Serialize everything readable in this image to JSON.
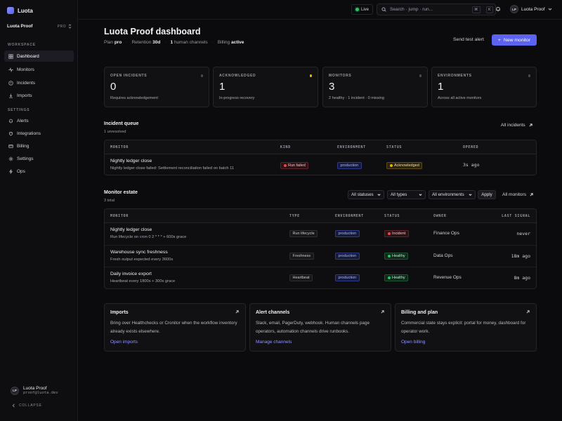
{
  "app": {
    "name": "Luota"
  },
  "workspace": {
    "name": "Luota Proof",
    "plan_badge": "PRO"
  },
  "sidebar": {
    "section_workspace": "WORKSPACE",
    "section_settings": "SETTINGS",
    "workspace_items": [
      {
        "label": "Dashboard",
        "icon": "dashboard-icon",
        "active": true
      },
      {
        "label": "Monitors",
        "icon": "pulse-icon"
      },
      {
        "label": "Incidents",
        "icon": "alert-circle-icon"
      },
      {
        "label": "Imports",
        "icon": "import-icon"
      }
    ],
    "settings_items": [
      {
        "label": "Alerts",
        "icon": "bell-icon"
      },
      {
        "label": "Integrations",
        "icon": "plug-icon"
      },
      {
        "label": "Billing",
        "icon": "card-icon"
      },
      {
        "label": "Settings",
        "icon": "gear-icon"
      },
      {
        "label": "Ops",
        "icon": "ops-icon"
      }
    ],
    "user": {
      "initials": "LP",
      "name": "Luota Proof",
      "email": "proof@luota.dev"
    },
    "collapse_label": "COLLAPSE"
  },
  "topbar": {
    "live_label": "Live",
    "search_placeholder": "Search · jump · run...",
    "kbd_cmd": "⌘",
    "kbd_k": "K",
    "user_initials": "LP",
    "user_name": "Luota Proof"
  },
  "header": {
    "title": "Luota Proof dashboard",
    "plan_label": "Plan",
    "plan_value": "pro",
    "retention_label": "Retention",
    "retention_value": "30d",
    "human_channels_count": "1",
    "human_channels_label": "human channels",
    "billing_label": "Billing",
    "billing_value": "active",
    "send_test_label": "Send test alert",
    "new_monitor_label": "New monitor"
  },
  "stats": [
    {
      "label": "OPEN INCIDENTS",
      "value": "0",
      "sub": "Requires acknowledgement",
      "dot_color": "#4a4a54"
    },
    {
      "label": "ACKNOWLEDGED",
      "value": "1",
      "sub": "In-progress recovery",
      "dot_color": "#eab308"
    },
    {
      "label": "MONITORS",
      "value": "3",
      "sub": "2 healthy · 1 incident · 0 missing",
      "dot_color": "#4a4a54"
    },
    {
      "label": "ENVIRONMENTS",
      "value": "1",
      "sub": "Across all active monitors",
      "dot_color": "#4a4a54"
    }
  ],
  "incident_queue": {
    "title": "Incident queue",
    "subtitle": "1 unresolved",
    "link_label": "All incidents",
    "columns": [
      "MONITOR",
      "KIND",
      "ENVIRONMENT",
      "STATUS",
      "OPENED"
    ],
    "rows": [
      {
        "monitor": "Nightly ledger close",
        "detail": "Nightly ledger close failed: Settlement reconciliation failed on batch 11",
        "kind": "Run failed",
        "environment": "production",
        "status": "Acknowledged",
        "opened": "3s ago"
      }
    ]
  },
  "monitor_estate": {
    "title": "Monitor estate",
    "subtitle": "3 total",
    "filters": {
      "status": "All statuses",
      "type": "All types",
      "environment": "All environments"
    },
    "apply_label": "Apply",
    "link_label": "All monitors",
    "columns": [
      "MONITOR",
      "TYPE",
      "ENVIRONMENT",
      "STATUS",
      "OWNER",
      "LAST SIGNAL"
    ],
    "rows": [
      {
        "monitor": "Nightly ledger close",
        "detail": "Run lifecycle on cron 0 2 * * * + 600s grace",
        "type": "Run lifecycle",
        "environment": "production",
        "status": "Incident",
        "owner": "Finance Ops",
        "last_signal": "never"
      },
      {
        "monitor": "Warehouse sync freshness",
        "detail": "Fresh output expected every 3600s",
        "type": "Freshness",
        "environment": "production",
        "status": "Healthy",
        "owner": "Data Ops",
        "last_signal": "18m ago"
      },
      {
        "monitor": "Daily invoice export",
        "detail": "Heartbeat every 1800s + 300s grace",
        "type": "Heartbeat",
        "environment": "production",
        "status": "Healthy",
        "owner": "Revenue Ops",
        "last_signal": "8m ago"
      }
    ]
  },
  "info_cards": [
    {
      "title": "Imports",
      "body": "Bring over Healthchecks or Cronitor when the workflow inventory already exists elsewhere.",
      "link": "Open imports"
    },
    {
      "title": "Alert channels",
      "body": "Slack, email, PagerDuty, webhook. Human channels page operators, automation channels drive runbooks.",
      "link": "Manage channels"
    },
    {
      "title": "Billing and plan",
      "body": "Commercial state stays explicit: portal for money, dashboard for operator work.",
      "link": "Open billing"
    }
  ],
  "colors": {
    "accent": "#5b63f0",
    "link": "#8f96ff",
    "healthy": "#22c55e",
    "incident": "#ef4444",
    "acknowledged": "#eab308"
  }
}
